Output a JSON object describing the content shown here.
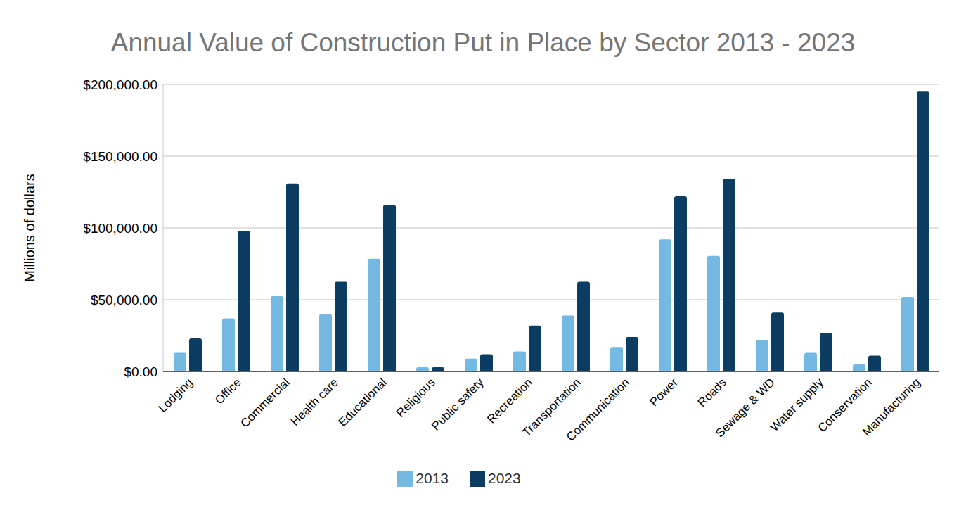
{
  "chart_data": {
    "type": "bar",
    "title": "Annual Value of Construction Put in Place by Sector 2013 - 2023",
    "y_label": "Millions of dollars",
    "categories": [
      "Lodging",
      "Office",
      "Commercial",
      "Health care",
      "Educational",
      "Religious",
      "Public safety",
      "Recreation",
      "Transportation",
      "Communication",
      "Power",
      "Roads",
      "Sewage & WD",
      "Water supply",
      "Conservation",
      "Manufacturing"
    ],
    "series": [
      {
        "name": "2013",
        "color": "#74b9e2",
        "values": [
          13000,
          37000,
          52500,
          40000,
          78500,
          3000,
          9000,
          14000,
          39000,
          17000,
          92000,
          80500,
          22000,
          13000,
          5000,
          52000
        ]
      },
      {
        "name": "2023",
        "color": "#0b3c61",
        "values": [
          23000,
          98000,
          131000,
          62500,
          116000,
          3000,
          12000,
          32000,
          62500,
          24000,
          122000,
          134000,
          41000,
          27000,
          11000,
          195000
        ]
      }
    ],
    "ylim": [
      0,
      200000
    ],
    "yticks": [
      {
        "value": 0,
        "label": "$0.00"
      },
      {
        "value": 50000,
        "label": "$50,000.00"
      },
      {
        "value": 100000,
        "label": "$100,000.00"
      },
      {
        "value": 150000,
        "label": "$150,000.00"
      },
      {
        "value": 200000,
        "label": "$200,000.00"
      }
    ],
    "grid": true,
    "legend": "bottom"
  }
}
